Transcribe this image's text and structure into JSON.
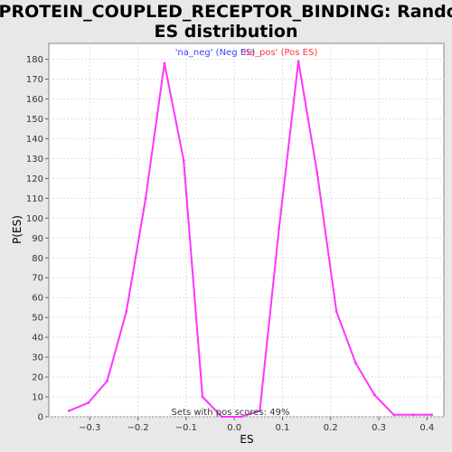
{
  "chart_data": {
    "type": "line",
    "title_line1": "G_PROTEIN_COUPLED_RECEPTOR_BINDING: Random",
    "title_line2": "ES distribution",
    "xlabel": "ES",
    "ylabel": "P(ES)",
    "xlim": [
      -0.385,
      0.435
    ],
    "ylim": [
      0,
      188
    ],
    "x_ticks": [
      -0.3,
      -0.2,
      -0.1,
      0.0,
      0.1,
      0.2,
      0.3,
      0.4
    ],
    "x_tick_labels": [
      "−0.3",
      "−0.2",
      "−0.1",
      "0.0",
      "0.1",
      "0.2",
      "0.3",
      "0.4"
    ],
    "y_ticks": [
      0,
      10,
      20,
      30,
      40,
      50,
      60,
      70,
      80,
      90,
      100,
      110,
      120,
      130,
      140,
      150,
      160,
      170,
      180
    ],
    "grid": true,
    "legend": [
      {
        "label": "'na_neg' (Neg ES)",
        "color": "#4040ff"
      },
      {
        "label": "'na_pos' (Pos ES)",
        "color": "#ff3333"
      }
    ],
    "annotation": "Sets with pos scores: 49%",
    "series": [
      {
        "color": "#ff33ff",
        "points": [
          [
            -0.343,
            3
          ],
          [
            -0.303,
            7
          ],
          [
            -0.264,
            18
          ],
          [
            -0.224,
            53
          ],
          [
            -0.184,
            110
          ],
          [
            -0.145,
            178
          ],
          [
            -0.105,
            129
          ],
          [
            -0.066,
            10
          ],
          [
            -0.026,
            0
          ],
          [
            0.014,
            0
          ],
          [
            0.053,
            3
          ],
          [
            0.093,
            95
          ],
          [
            0.133,
            179
          ],
          [
            0.172,
            123
          ],
          [
            0.212,
            53
          ],
          [
            0.252,
            27
          ],
          [
            0.291,
            11
          ],
          [
            0.331,
            1
          ],
          [
            0.371,
            1
          ],
          [
            0.41,
            1
          ]
        ]
      }
    ]
  }
}
